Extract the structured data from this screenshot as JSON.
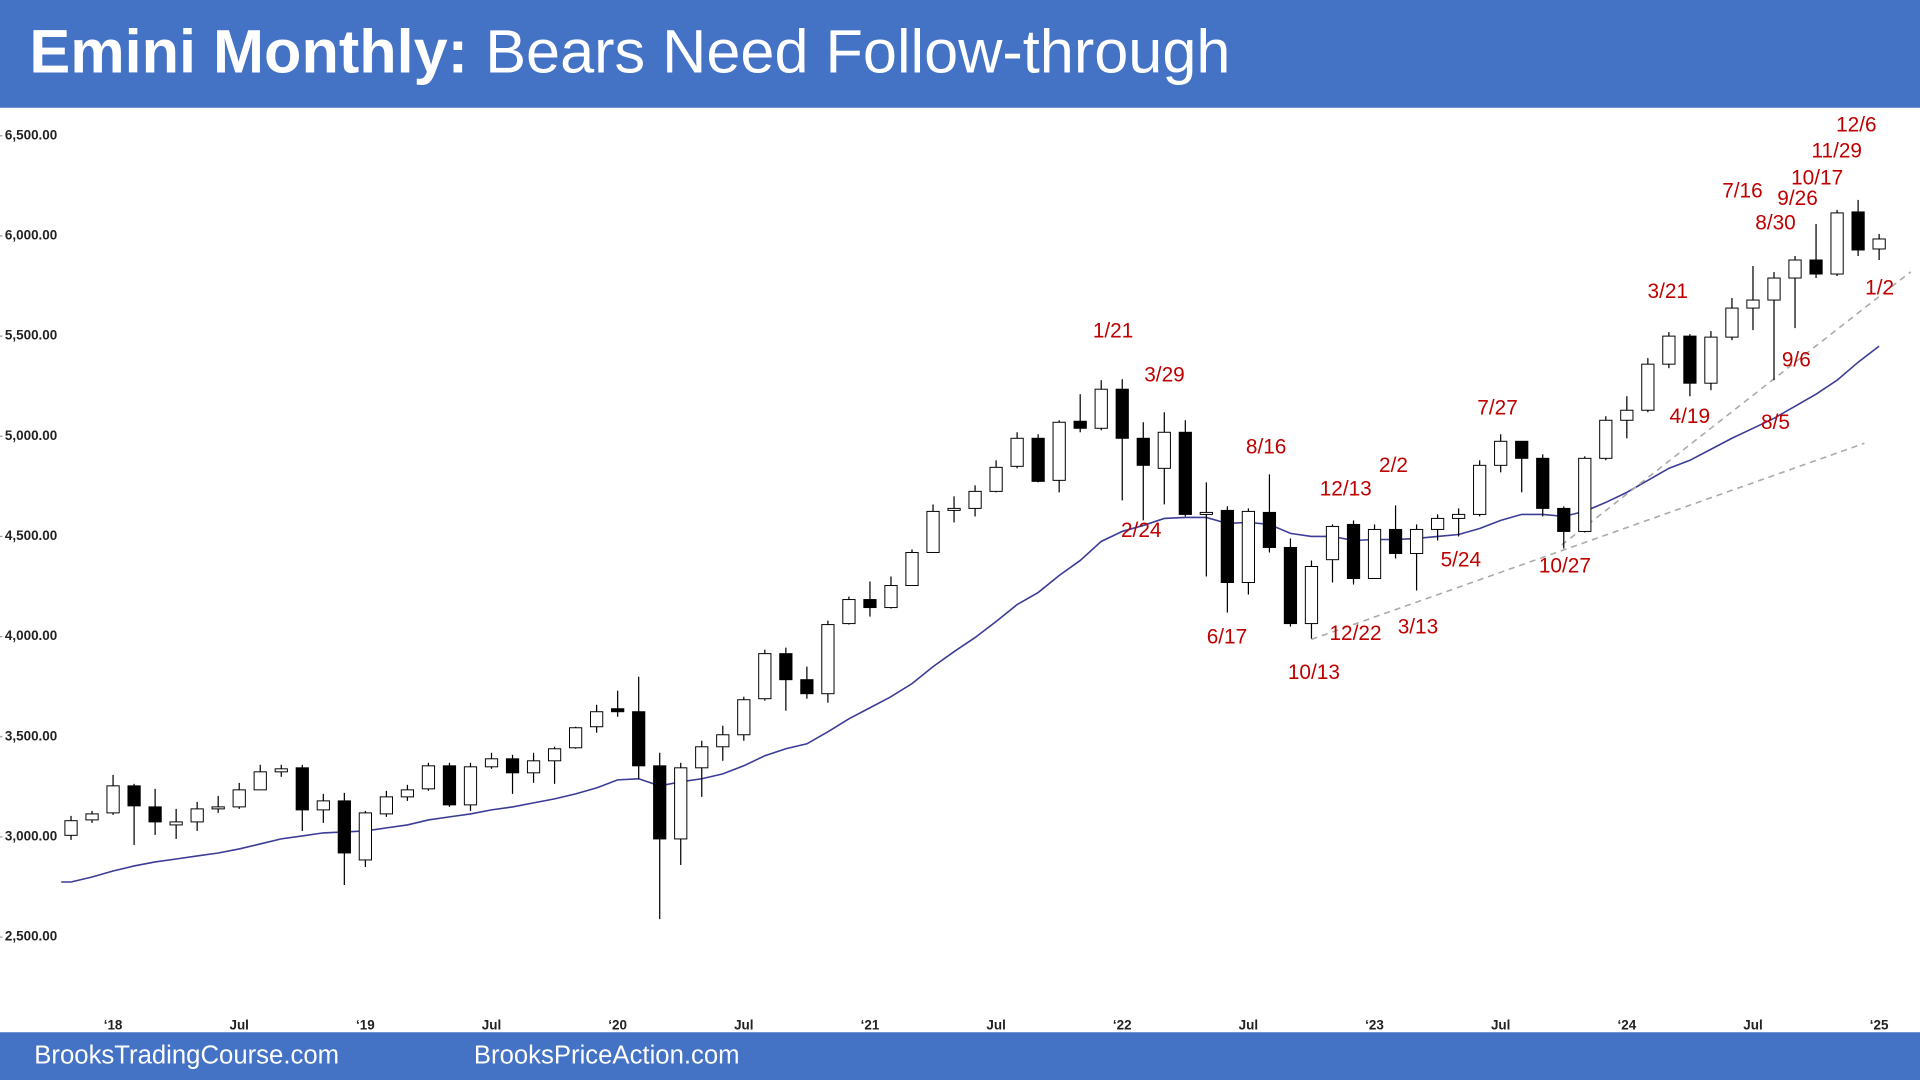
{
  "chart_data": {
    "type": "candlestick",
    "title": "Emini Monthly:",
    "subtitle": "Bears Need Follow-through",
    "footer": [
      "BrooksTradingCourse.com",
      "BrooksPriceAction.com"
    ],
    "categories": [
      null,
      null,
      "‘18",
      null,
      null,
      null,
      null,
      null,
      "Jul",
      null,
      null,
      null,
      null,
      null,
      "‘19",
      null,
      null,
      null,
      null,
      null,
      "Jul",
      null,
      null,
      null,
      null,
      null,
      "‘20",
      null,
      null,
      null,
      null,
      null,
      "Jul",
      null,
      null,
      null,
      null,
      null,
      "‘21",
      null,
      null,
      null,
      null,
      null,
      "Jul",
      null,
      null,
      null,
      null,
      null,
      "‘22",
      null,
      null,
      null,
      null,
      null,
      "Jul",
      null,
      null,
      null,
      null,
      null,
      "‘23",
      null,
      null,
      null,
      null,
      null,
      "Jul",
      null,
      null,
      null,
      null,
      null,
      "‘24",
      null,
      null,
      null,
      null,
      null,
      "Jul",
      null,
      null,
      null,
      null,
      null,
      "‘25"
    ],
    "open": [
      3008,
      3085,
      3120,
      3255,
      3150,
      3060,
      3075,
      3140,
      3150,
      3235,
      3325,
      3345,
      3135,
      3180,
      2885,
      3115,
      3200,
      3240,
      3355,
      3160,
      3350,
      3390,
      3320,
      3380,
      3445,
      3550,
      3640,
      3625,
      3355,
      2990,
      3345,
      3450,
      3510,
      3690,
      3915,
      3785,
      3715,
      4065,
      4185,
      4145,
      4255,
      4420,
      4630,
      4640,
      4725,
      4850,
      4990,
      4780,
      5075,
      5040,
      5235,
      4990,
      4840,
      5020,
      4610,
      4630,
      4270,
      4620,
      4445,
      4065,
      4384,
      4560,
      4290,
      4535,
      4415,
      4535,
      4590,
      4610,
      4855,
      4975,
      4890,
      4640,
      4525,
      4890,
      5080,
      5130,
      5360,
      5500,
      5265,
      5495,
      5640,
      5680,
      5790,
      5880,
      5810,
      6120,
      5935
    ],
    "high": [
      3105,
      3130,
      3310,
      3265,
      3240,
      3140,
      3175,
      3205,
      3270,
      3360,
      3360,
      3360,
      3215,
      3220,
      3130,
      3230,
      3260,
      3370,
      3370,
      3370,
      3420,
      3410,
      3420,
      3450,
      3550,
      3660,
      3730,
      3800,
      3420,
      3370,
      3480,
      3555,
      3700,
      3935,
      3945,
      3850,
      4080,
      4200,
      4275,
      4300,
      4435,
      4660,
      4700,
      4755,
      4880,
      5020,
      5010,
      5080,
      5210,
      5280,
      5285,
      5070,
      5120,
      5080,
      4770,
      4650,
      4640,
      4810,
      4490,
      4380,
      4560,
      4580,
      4560,
      4655,
      4560,
      4610,
      4640,
      4880,
      5010,
      4975,
      4910,
      4650,
      4900,
      5100,
      5200,
      5390,
      5520,
      5510,
      5525,
      5690,
      5850,
      5820,
      5900,
      6060,
      6130,
      6180,
      6010
    ],
    "low": [
      2985,
      3070,
      3110,
      2960,
      3010,
      2990,
      3030,
      3120,
      3140,
      3235,
      3300,
      3030,
      3070,
      2760,
      2850,
      3100,
      3180,
      3230,
      3150,
      3130,
      3340,
      3215,
      3270,
      3265,
      3440,
      3520,
      3600,
      3290,
      2590,
      2860,
      3200,
      3380,
      3480,
      3680,
      3630,
      3690,
      3670,
      4060,
      4100,
      4140,
      4255,
      4420,
      4570,
      4600,
      4720,
      4840,
      4770,
      4720,
      5020,
      5030,
      4680,
      4580,
      4660,
      4600,
      4300,
      4120,
      4210,
      4420,
      4050,
      3990,
      4270,
      4260,
      4290,
      4390,
      4230,
      4480,
      4500,
      4600,
      4820,
      4720,
      4600,
      4440,
      4520,
      4880,
      4990,
      5120,
      5340,
      5200,
      5230,
      5480,
      5530,
      5280,
      5540,
      5790,
      5800,
      5900,
      5880
    ],
    "close": [
      3081,
      3115,
      3255,
      3155,
      3075,
      3075,
      3140,
      3150,
      3235,
      3325,
      3340,
      3135,
      3180,
      2920,
      3120,
      3200,
      3235,
      3355,
      3160,
      3350,
      3390,
      3320,
      3380,
      3440,
      3545,
      3625,
      3625,
      3355,
      2990,
      3345,
      3450,
      3510,
      3685,
      3915,
      3785,
      3715,
      4060,
      4185,
      4145,
      4255,
      4420,
      4625,
      4640,
      4725,
      4845,
      4990,
      4775,
      5070,
      5040,
      5235,
      4990,
      4855,
      5020,
      4610,
      4620,
      4270,
      4625,
      4445,
      4065,
      4350,
      4550,
      4290,
      4535,
      4415,
      4535,
      4590,
      4610,
      4855,
      4975,
      4890,
      4640,
      4525,
      4890,
      5080,
      5130,
      5360,
      5500,
      5265,
      5495,
      5640,
      5680,
      5790,
      5880,
      5810,
      6115,
      5930,
      5985
    ],
    "up_color": "#ffffff",
    "down_color": "#000000",
    "moving_average": {
      "color": "#3c3c96",
      "values": [
        2775,
        2800,
        2830,
        2855,
        2875,
        2890,
        2905,
        2920,
        2940,
        2965,
        2990,
        3005,
        3020,
        3025,
        3030,
        3045,
        3060,
        3085,
        3100,
        3115,
        3135,
        3150,
        3170,
        3190,
        3215,
        3245,
        3285,
        3290,
        3255,
        3275,
        3290,
        3315,
        3355,
        3405,
        3440,
        3465,
        3525,
        3590,
        3645,
        3700,
        3765,
        3850,
        3925,
        3995,
        4075,
        4160,
        4220,
        4305,
        4380,
        4475,
        4525,
        4555,
        4590,
        4595,
        4595,
        4565,
        4570,
        4560,
        4515,
        4500,
        4500,
        4480,
        4485,
        4485,
        4490,
        4500,
        4510,
        4540,
        4580,
        4610,
        4610,
        4600,
        4625,
        4670,
        4720,
        4780,
        4840,
        4880,
        4935,
        4990,
        5040,
        5090,
        5150,
        5210,
        5280,
        5370,
        5450
      ]
    },
    "trendlines": [
      {
        "x": [
          59,
          85.3
        ],
        "y": [
          3986,
          4965
        ]
      },
      {
        "x": [
          70.9,
          87.5
        ],
        "y": [
          4457,
          5821
        ]
      }
    ],
    "ylim": [
      2025,
      6640
    ],
    "yticks": [
      {
        "value": 2500,
        "label": "2,500.00"
      },
      {
        "value": 3000,
        "label": "3,000.00"
      },
      {
        "value": 3500,
        "label": "3,500.00"
      },
      {
        "value": 4000,
        "label": "4,000.00"
      },
      {
        "value": 4500,
        "label": "4,500.00"
      },
      {
        "value": 5000,
        "label": "5,000.00"
      },
      {
        "value": 5500,
        "label": "5,500.00"
      },
      {
        "value": 6000,
        "label": "6,000.00"
      },
      {
        "value": 6500,
        "label": "6,500.00"
      }
    ],
    "annotations": [
      "12/6",
      "11/29",
      "10/17",
      "9/26",
      "7/16",
      "8/30",
      "1/2",
      "3/21",
      "1/21",
      "3/29",
      "9/6",
      "4/19",
      "8/5",
      "7/27",
      "8/16",
      "2/2",
      "12/13",
      "2/24",
      "5/24",
      "10/27",
      "6/17",
      "12/22",
      "3/13",
      "10/13"
    ]
  }
}
